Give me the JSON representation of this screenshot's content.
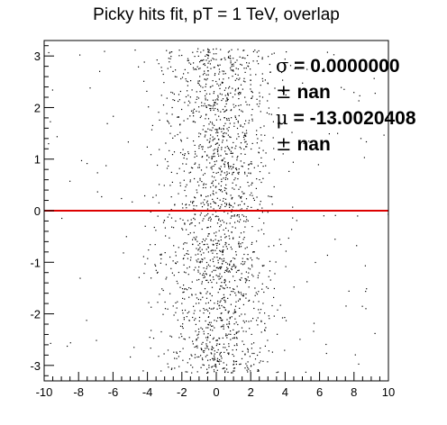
{
  "chart_data": {
    "type": "scatter",
    "title": "Picky hits fit, pT = 1 TeV, overlap",
    "xlabel": "",
    "ylabel": "",
    "xlim": [
      -10,
      10
    ],
    "ylim": [
      -3.3,
      3.3
    ],
    "x_ticks": [
      -10,
      -8,
      -6,
      -4,
      -2,
      0,
      2,
      4,
      6,
      8,
      10
    ],
    "x_tick_labels": [
      "-10",
      "-8",
      "-6",
      "-4",
      "-2",
      "0",
      "2",
      "4",
      "6",
      "8",
      "10"
    ],
    "y_ticks": [
      -3,
      -2,
      -1,
      0,
      1,
      2,
      3
    ],
    "y_tick_labels": [
      "-3",
      "-2",
      "-1",
      "0",
      "1",
      "2",
      "3"
    ],
    "grid": false,
    "fit_line": {
      "y": 0,
      "color": "#dd0000"
    },
    "point_color": "#000000",
    "point_distribution": {
      "count": 2000,
      "x_center": 0.0,
      "x_spread": 1.6,
      "y_range": [
        -3.15,
        3.15
      ]
    },
    "stats_box": {
      "sigma_symbol": "σ",
      "sigma_text": " = 0.0000000",
      "sigma_err_symbol": "±",
      "sigma_err_text": " nan",
      "mu_symbol": "μ",
      "mu_text": " = -13.0020408",
      "mu_err_symbol": "±",
      "mu_err_text": " nan"
    }
  }
}
